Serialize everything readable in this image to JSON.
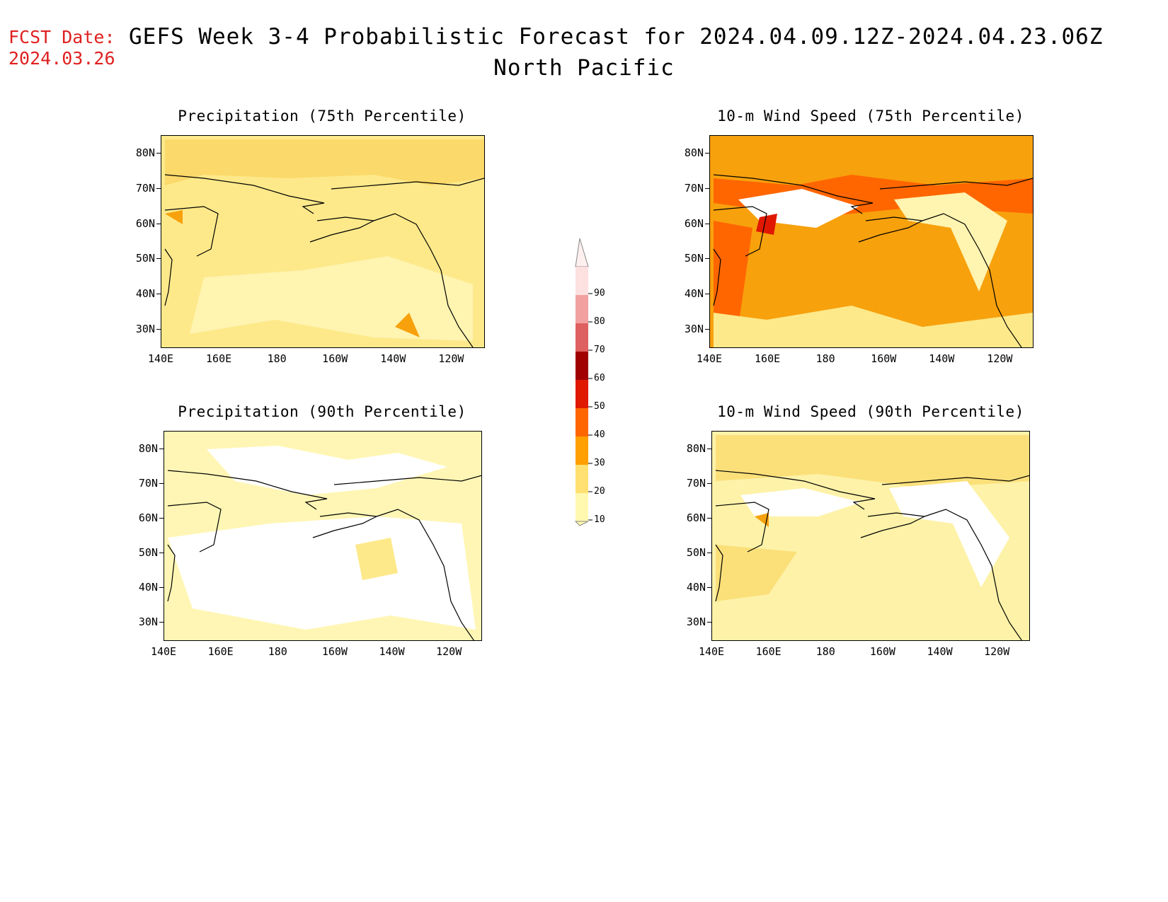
{
  "header": {
    "fcst_label": "FCST Date:",
    "fcst_date": "2024.03.26",
    "title": "GEFS Week 3-4 Probabilistic Forecast for 2024.04.09.12Z-2024.04.23.06Z",
    "subtitle": "North Pacific"
  },
  "axes": {
    "lat_ticks": [
      "80N",
      "70N",
      "60N",
      "50N",
      "40N",
      "30N"
    ],
    "lon_ticks": [
      "140E",
      "160E",
      "180",
      "160W",
      "140W",
      "120W"
    ]
  },
  "panels": [
    {
      "title": "Precipitation (75th Percentile)",
      "fill": "#fde98a"
    },
    {
      "title": "10-m Wind Speed (75th Percentile)",
      "fill": "#f7a10d"
    },
    {
      "title": "Precipitation (90th Percentile)",
      "fill": "#fff6b5"
    },
    {
      "title": "10-m Wind Speed (90th Percentile)",
      "fill": "#fdf2a8"
    }
  ],
  "colorbar": {
    "labels": [
      "90",
      "80",
      "70",
      "60",
      "50",
      "40",
      "30",
      "20",
      "10"
    ],
    "colors": [
      "#fde0e0",
      "#f2a0a0",
      "#de6060",
      "#a00000",
      "#e01800",
      "#ff6600",
      "#ff9f00",
      "#ffe070",
      "#fff8b0"
    ]
  }
}
